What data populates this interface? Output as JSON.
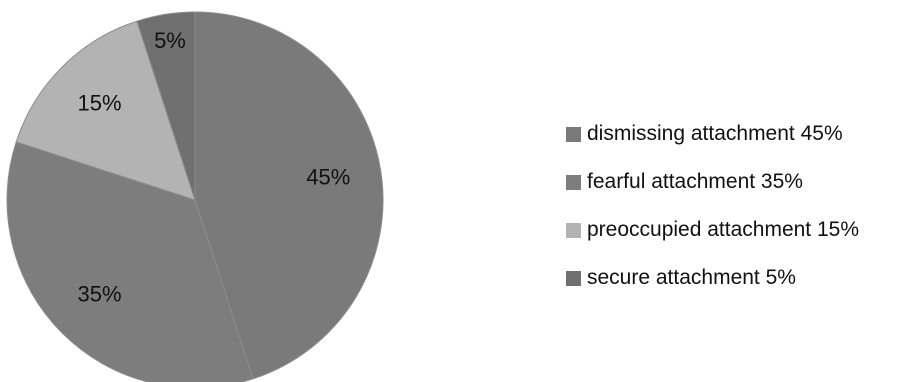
{
  "chart_data": {
    "type": "pie",
    "title": "",
    "slices": [
      {
        "label": "dismissing attachment 45%",
        "value": 45,
        "data_label": "45%",
        "color": "#7a7a7a"
      },
      {
        "label": "fearful attachment 35%",
        "value": 35,
        "data_label": "35%",
        "color": "#7d7d7d"
      },
      {
        "label": "preoccupied attachment 15%",
        "value": 15,
        "data_label": "15%",
        "color": "#b3b3b3"
      },
      {
        "label": "secure attachment 5%",
        "value": 5,
        "data_label": "5%",
        "color": "#707070"
      }
    ],
    "start_angle_deg": 0,
    "direction": "clockwise",
    "legend_position": "right"
  }
}
